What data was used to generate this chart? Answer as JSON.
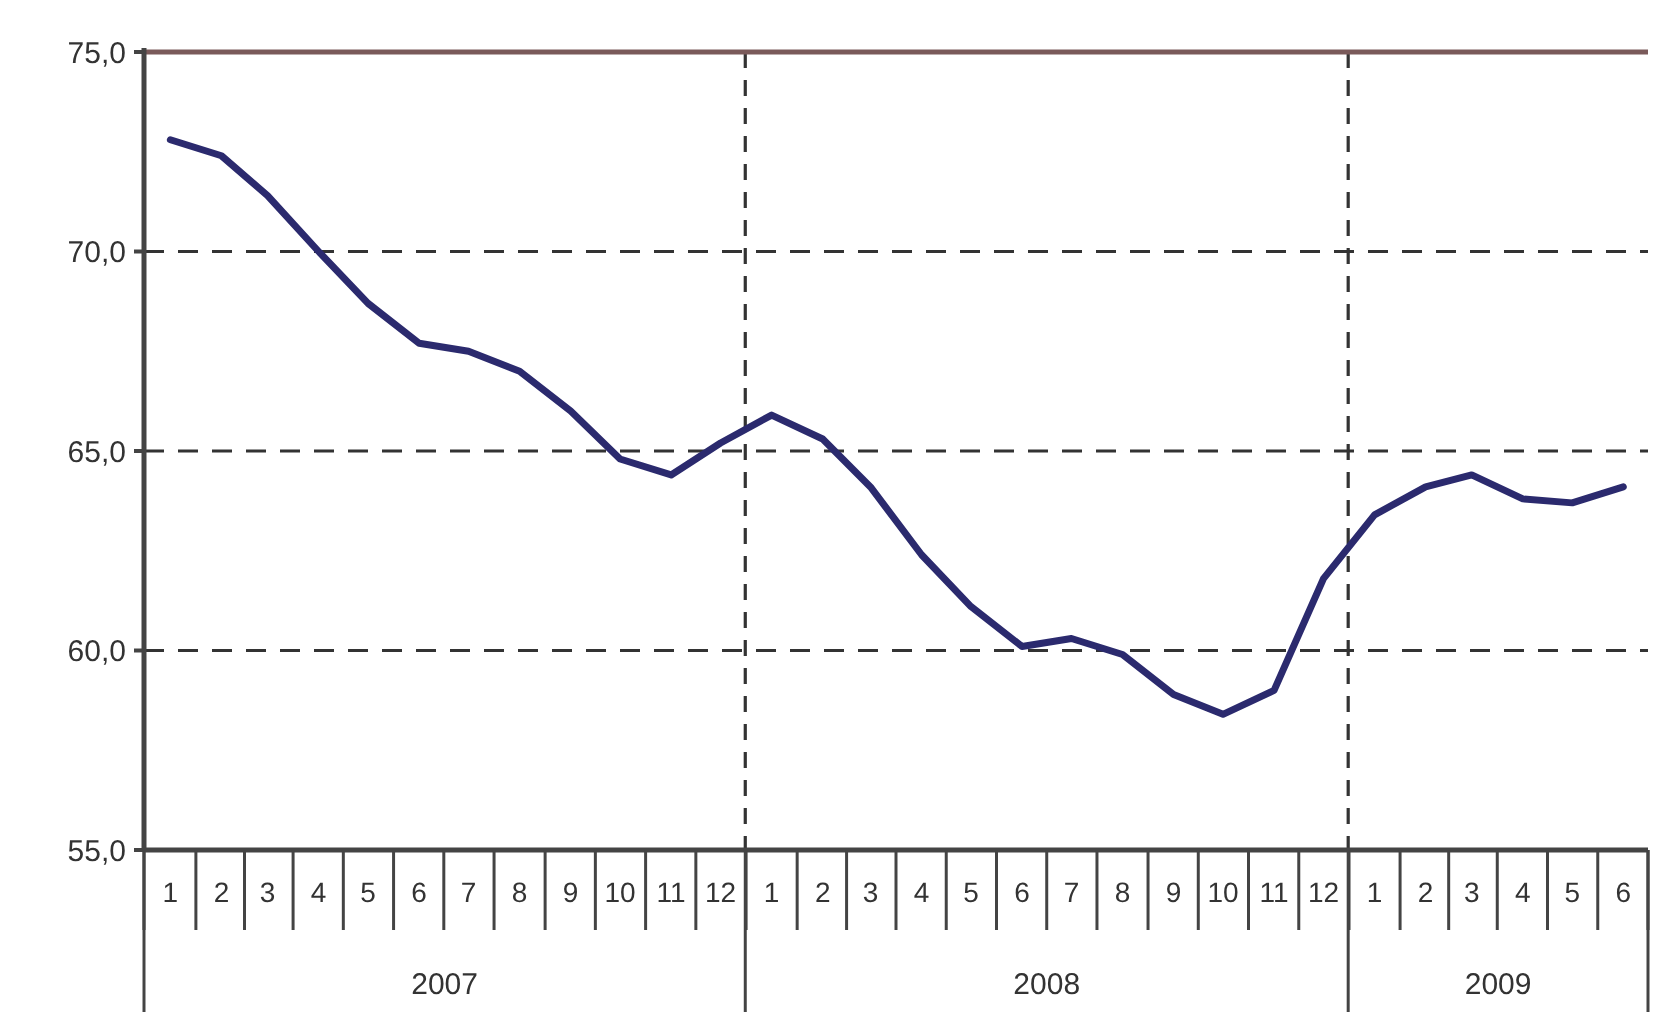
{
  "chart_data": {
    "type": "line",
    "x": [
      "2007-01",
      "2007-02",
      "2007-03",
      "2007-04",
      "2007-05",
      "2007-06",
      "2007-07",
      "2007-08",
      "2007-09",
      "2007-10",
      "2007-11",
      "2007-12",
      "2008-01",
      "2008-02",
      "2008-03",
      "2008-04",
      "2008-05",
      "2008-06",
      "2008-07",
      "2008-08",
      "2008-09",
      "2008-10",
      "2008-11",
      "2008-12",
      "2009-01",
      "2009-02",
      "2009-03",
      "2009-04",
      "2009-05",
      "2009-06"
    ],
    "series": [
      {
        "color": "#2b2a6e",
        "values": [
          72.8,
          72.4,
          71.4,
          70.0,
          68.7,
          67.7,
          67.5,
          67.0,
          66.0,
          64.8,
          64.4,
          65.2,
          65.9,
          65.3,
          64.1,
          62.4,
          61.1,
          60.1,
          60.3,
          59.9,
          58.9,
          58.4,
          59.0,
          61.8,
          63.4,
          64.1,
          64.4,
          63.8,
          63.7,
          64.1
        ]
      }
    ],
    "xlim": [
      "2006-12-16",
      "2009-06-16"
    ],
    "xticks": [
      {
        "value": "2007-01",
        "label": "1"
      },
      {
        "value": "2007-02",
        "label": "2"
      },
      {
        "value": "2007-03",
        "label": "3"
      },
      {
        "value": "2007-04",
        "label": "4"
      },
      {
        "value": "2007-05",
        "label": "5"
      },
      {
        "value": "2007-06",
        "label": "6"
      },
      {
        "value": "2007-07",
        "label": "7"
      },
      {
        "value": "2007-08",
        "label": "8"
      },
      {
        "value": "2007-09",
        "label": "9"
      },
      {
        "value": "2007-10",
        "label": "10"
      },
      {
        "value": "2007-11",
        "label": "11"
      },
      {
        "value": "2007-12",
        "label": "12"
      },
      {
        "value": "2008-01",
        "label": "1"
      },
      {
        "value": "2008-02",
        "label": "2"
      },
      {
        "value": "2008-03",
        "label": "3"
      },
      {
        "value": "2008-04",
        "label": "4"
      },
      {
        "value": "2008-05",
        "label": "5"
      },
      {
        "value": "2008-06",
        "label": "6"
      },
      {
        "value": "2008-07",
        "label": "7"
      },
      {
        "value": "2008-08",
        "label": "8"
      },
      {
        "value": "2008-09",
        "label": "9"
      },
      {
        "value": "2008-10",
        "label": "10"
      },
      {
        "value": "2008-11",
        "label": "11"
      },
      {
        "value": "2008-12",
        "label": "12"
      },
      {
        "value": "2009-01",
        "label": "1"
      },
      {
        "value": "2009-02",
        "label": "2"
      },
      {
        "value": "2009-03",
        "label": "3"
      },
      {
        "value": "2009-04",
        "label": "4"
      },
      {
        "value": "2009-05",
        "label": "5"
      },
      {
        "value": "2009-06",
        "label": "6"
      }
    ],
    "ylim": [
      55,
      75
    ],
    "yticks": [
      {
        "value": 55,
        "label": "55,0"
      },
      {
        "value": 60,
        "label": "60,0"
      },
      {
        "value": 65,
        "label": "65,0"
      },
      {
        "value": 70,
        "label": "70,0"
      },
      {
        "value": 75,
        "label": "75,0"
      }
    ],
    "grid": "y",
    "ref_lines": [
      {
        "axis": "x",
        "value": "2007-12-16",
        "line_style": "dashed"
      },
      {
        "axis": "x",
        "value": "2008-12-16",
        "line_style": "dashed"
      }
    ],
    "annotations": [
      "2007",
      "2008",
      "2009"
    ],
    "line_style": "solid",
    "marker": "none"
  }
}
